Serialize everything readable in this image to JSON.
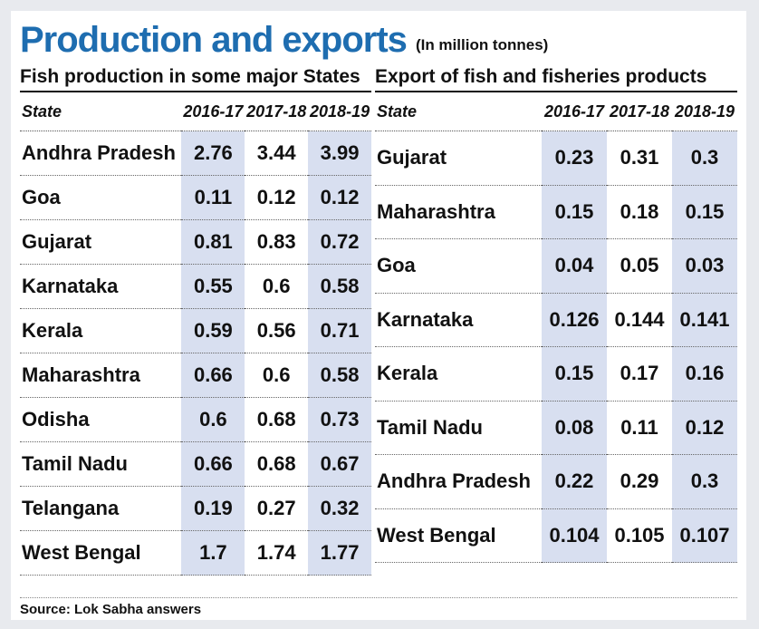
{
  "title": "Production and exports",
  "unit": "(In million tonnes)",
  "source": "Source: Lok Sabha answers",
  "colors": {
    "title": "#1e6db0",
    "column_shade": "#d8dff0"
  },
  "chart_data": [
    {
      "type": "table",
      "title": "Fish production in some major States",
      "columns": [
        "State",
        "2016-17",
        "2017-18",
        "2018-19"
      ],
      "rows": [
        {
          "state": "Andhra Pradesh",
          "values": [
            2.76,
            3.44,
            3.99
          ]
        },
        {
          "state": "Goa",
          "values": [
            0.11,
            0.12,
            0.12
          ]
        },
        {
          "state": "Gujarat",
          "values": [
            0.81,
            0.83,
            0.72
          ]
        },
        {
          "state": "Karnataka",
          "values": [
            0.55,
            0.6,
            0.58
          ]
        },
        {
          "state": "Kerala",
          "values": [
            0.59,
            0.56,
            0.71
          ]
        },
        {
          "state": "Maharashtra",
          "values": [
            0.66,
            0.6,
            0.58
          ]
        },
        {
          "state": "Odisha",
          "values": [
            0.6,
            0.68,
            0.73
          ]
        },
        {
          "state": "Tamil Nadu",
          "values": [
            0.66,
            0.68,
            0.67
          ]
        },
        {
          "state": "Telangana",
          "values": [
            0.19,
            0.27,
            0.32
          ]
        },
        {
          "state": "West Bengal",
          "values": [
            1.7,
            1.74,
            1.77
          ]
        }
      ]
    },
    {
      "type": "table",
      "title": "Export of fish and fisheries products",
      "columns": [
        "State",
        "2016-17",
        "2017-18",
        "2018-19"
      ],
      "rows": [
        {
          "state": "Gujarat",
          "values": [
            0.23,
            0.31,
            0.3
          ]
        },
        {
          "state": "Maharashtra",
          "values": [
            0.15,
            0.18,
            0.15
          ]
        },
        {
          "state": "Goa",
          "values": [
            0.04,
            0.05,
            0.03
          ]
        },
        {
          "state": "Karnataka",
          "values": [
            0.126,
            0.144,
            0.141
          ]
        },
        {
          "state": "Kerala",
          "values": [
            0.15,
            0.17,
            0.16
          ]
        },
        {
          "state": "Tamil Nadu",
          "values": [
            0.08,
            0.11,
            0.12
          ]
        },
        {
          "state": "Andhra Pradesh",
          "values": [
            0.22,
            0.29,
            0.3
          ]
        },
        {
          "state": "West Bengal",
          "values": [
            0.104,
            0.105,
            0.107
          ]
        }
      ]
    }
  ]
}
